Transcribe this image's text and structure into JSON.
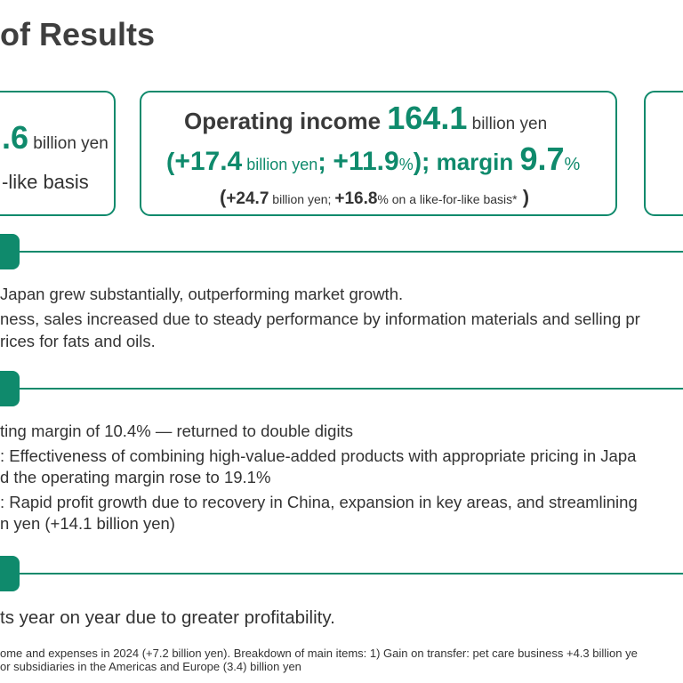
{
  "title": "of Results",
  "card_left": {
    "value": ".6",
    "unit": " billion yen",
    "basis": "-like basis"
  },
  "card_mid": {
    "label": "Operating income ",
    "value": "164.1",
    "unit": " billion yen",
    "open": "(",
    "change": "+17.4",
    "change_unit": " billion yen",
    "sep": "; ",
    "pct": "+11.9",
    "pct_sign": "%",
    "close": ");",
    "margin_label": " margin ",
    "margin_value": "9.7",
    "margin_pct": "%",
    "lfl_open": "(",
    "lfl_change": "+24.7",
    "lfl_unit": " billion yen; ",
    "lfl_pct": "+16.8",
    "lfl_pct_text": "% on a like-for-like basis*",
    "lfl_close": " )"
  },
  "section1": {
    "lines": [
      "Japan grew substantially, outperforming market growth.",
      "ness, sales increased due to steady performance by information materials and selling pr",
      "rices for fats and oils."
    ]
  },
  "section2": {
    "lines": [
      "ting margin of 10.4% — returned to double digits",
      ": Effectiveness of combining high-value-added products with appropriate pricing in Japa",
      "d the operating margin rose to 19.1%",
      ": Rapid profit growth due to recovery in China, expansion in key areas, and streamlining",
      "n yen (+14.1 billion yen)"
    ]
  },
  "section3": {
    "lines": [
      "ts year on year due to greater profitability."
    ]
  },
  "footnote": {
    "lines": [
      "ome and expenses in 2024 (+7.2 billion yen). Breakdown of main items: 1) Gain on transfer: pet care business +4.3 billion ye",
      "or subsidiaries in the Americas and Europe (3.4) billion yen"
    ]
  },
  "colors": {
    "accent": "#0f8a6c",
    "text": "#333333"
  }
}
